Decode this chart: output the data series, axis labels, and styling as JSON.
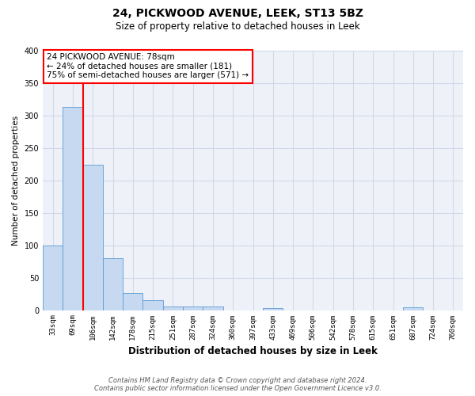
{
  "title": "24, PICKWOOD AVENUE, LEEK, ST13 5BZ",
  "subtitle": "Size of property relative to detached houses in Leek",
  "xlabel": "Distribution of detached houses by size in Leek",
  "ylabel": "Number of detached properties",
  "bin_labels": [
    "33sqm",
    "69sqm",
    "106sqm",
    "142sqm",
    "178sqm",
    "215sqm",
    "251sqm",
    "287sqm",
    "324sqm",
    "360sqm",
    "397sqm",
    "433sqm",
    "469sqm",
    "506sqm",
    "542sqm",
    "578sqm",
    "615sqm",
    "651sqm",
    "687sqm",
    "724sqm",
    "760sqm"
  ],
  "bin_values": [
    100,
    313,
    224,
    80,
    26,
    15,
    5,
    5,
    6,
    0,
    0,
    3,
    0,
    0,
    0,
    0,
    0,
    0,
    4,
    0,
    0
  ],
  "bar_color": "#c6d9f0",
  "bar_edge_color": "#5b9bd5",
  "grid_color": "#d0d8e8",
  "vline_color": "red",
  "vline_x": 1.5,
  "ylim": [
    0,
    400
  ],
  "yticks": [
    0,
    50,
    100,
    150,
    200,
    250,
    300,
    350,
    400
  ],
  "annotation_title": "24 PICKWOOD AVENUE: 78sqm",
  "annotation_line1": "← 24% of detached houses are smaller (181)",
  "annotation_line2": "75% of semi-detached houses are larger (571) →",
  "annotation_box_color": "white",
  "annotation_box_edge": "red",
  "footer_line1": "Contains HM Land Registry data © Crown copyright and database right 2024.",
  "footer_line2": "Contains public sector information licensed under the Open Government Licence v3.0.",
  "background_color": "#eef2f8",
  "title_fontsize": 10,
  "subtitle_fontsize": 8.5,
  "xlabel_fontsize": 8.5,
  "ylabel_fontsize": 7.5,
  "tick_fontsize": 6.5,
  "ann_fontsize": 7.5,
  "footer_fontsize": 6
}
